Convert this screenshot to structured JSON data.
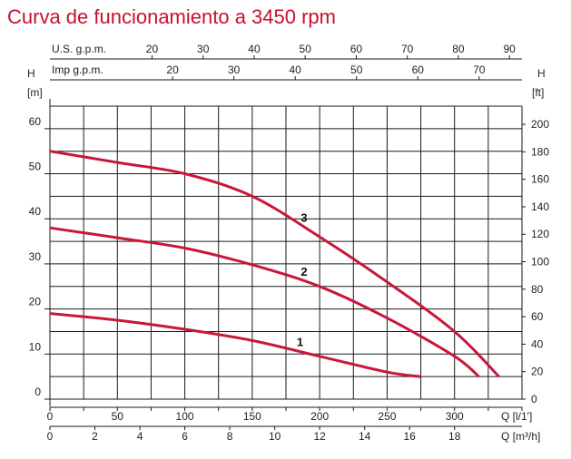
{
  "title": "Curva de funcionamiento a 3450 rpm",
  "chart_data": {
    "type": "line",
    "title": "Curva de funcionamiento a 3450 rpm",
    "x_unit_lpm": "Q [l/1']",
    "x_unit_m3h": "Q [m³/h]",
    "x_unit_usgpm": "U.S. g.p.m.",
    "x_unit_impgpm": "Imp g.p.m.",
    "y_label_left": "H",
    "y_unit_left": "[m]",
    "y_label_right": "H",
    "y_unit_right": "[ft]",
    "xlim_lpm": [
      0,
      350
    ],
    "ylim_m": [
      0,
      65
    ],
    "grid": true,
    "x_ticks_lpm": [
      0,
      50,
      100,
      150,
      200,
      250,
      300
    ],
    "x_ticks_m3h": [
      0,
      2,
      4,
      6,
      8,
      10,
      12,
      14,
      16,
      18
    ],
    "x_ticks_usgpm": [
      20,
      30,
      40,
      50,
      60,
      70,
      80,
      90
    ],
    "x_ticks_impgpm": [
      20,
      30,
      40,
      50,
      60,
      70
    ],
    "y_ticks_m": [
      0,
      10,
      20,
      30,
      40,
      50,
      60
    ],
    "y_ticks_ft": [
      0,
      20,
      40,
      60,
      80,
      100,
      120,
      140,
      160,
      180,
      200
    ],
    "series": [
      {
        "name": "1",
        "x": [
          0,
          50,
          100,
          150,
          200,
          250,
          275
        ],
        "y": [
          19,
          17.5,
          15.5,
          13,
          9.5,
          6,
          5
        ]
      },
      {
        "name": "2",
        "x": [
          0,
          50,
          100,
          150,
          200,
          250,
          300,
          318
        ],
        "y": [
          38,
          35.8,
          33.5,
          29.8,
          25,
          18,
          9.5,
          5
        ]
      },
      {
        "name": "3",
        "x": [
          0,
          50,
          100,
          150,
          200,
          250,
          300,
          333
        ],
        "y": [
          55,
          52.5,
          50,
          45,
          36,
          26,
          15,
          5
        ]
      }
    ]
  }
}
